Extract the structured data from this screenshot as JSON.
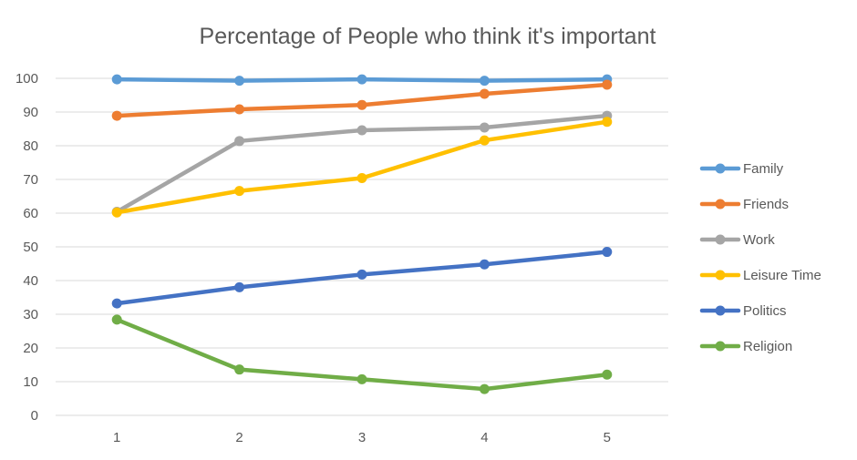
{
  "chart_data": {
    "type": "line",
    "title": "Percentage of People who think it's important",
    "xlabel": "",
    "ylabel": "",
    "categories": [
      "1",
      "2",
      "3",
      "4",
      "5"
    ],
    "ylim": [
      0,
      100
    ],
    "yticks": [
      0,
      10,
      20,
      30,
      40,
      50,
      60,
      70,
      80,
      90,
      100
    ],
    "grid": true,
    "legend_position": "right",
    "series": [
      {
        "name": "Family",
        "color": "#5B9BD5",
        "values": [
          99.7,
          99.3,
          99.7,
          99.3,
          99.7
        ]
      },
      {
        "name": "Friends",
        "color": "#ED7D31",
        "values": [
          88.9,
          90.8,
          92.1,
          95.4,
          98.1
        ]
      },
      {
        "name": "Work",
        "color": "#A5A5A5",
        "values": [
          60.4,
          81.4,
          84.6,
          85.4,
          88.9
        ]
      },
      {
        "name": "Leisure Time",
        "color": "#FFC000",
        "values": [
          60.2,
          66.6,
          70.4,
          81.6,
          87.1
        ]
      },
      {
        "name": "Politics",
        "color": "#4472C4",
        "values": [
          33.2,
          38.0,
          41.8,
          44.8,
          48.5
        ]
      },
      {
        "name": "Religion",
        "color": "#70AD47",
        "values": [
          28.4,
          13.6,
          10.7,
          7.8,
          12.1
        ]
      }
    ]
  }
}
